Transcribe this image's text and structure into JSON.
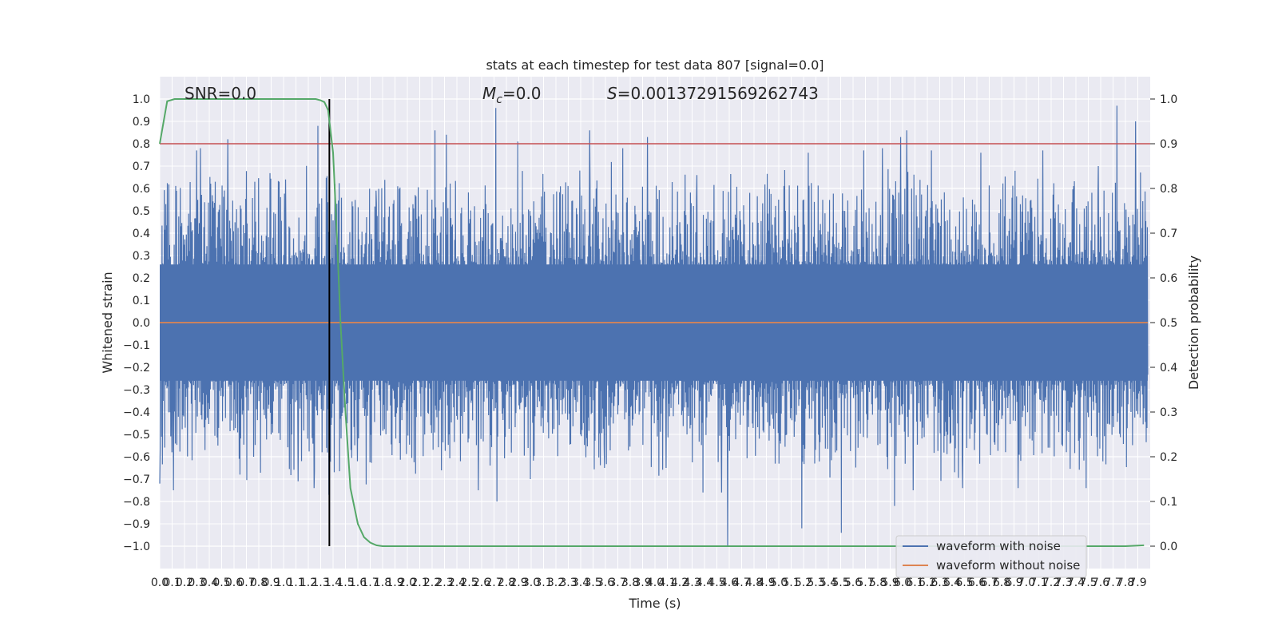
{
  "chart_data": {
    "type": "line",
    "title": "stats at each timestep for test data 807 [signal=0.0]",
    "xlabel": "Time (s)",
    "ylabel": "Whitened strain",
    "y2label": "Detection probability",
    "xlim": [
      0.0,
      8.0
    ],
    "ylim": [
      -1.1,
      1.1
    ],
    "y2lim": [
      -0.05,
      1.05
    ],
    "xticks": [
      "0.0",
      "0.1",
      "0.2",
      "0.3",
      "0.4",
      "0.5",
      "0.6",
      "0.7",
      "0.8",
      "0.9",
      "1.0",
      "1.1",
      "1.2",
      "1.3",
      "1.4",
      "1.5",
      "1.6",
      "1.7",
      "1.8",
      "1.9",
      "2.0",
      "2.1",
      "2.2",
      "2.3",
      "2.4",
      "2.5",
      "2.6",
      "2.7",
      "2.8",
      "2.9",
      "3.0",
      "3.1",
      "3.2",
      "3.3",
      "3.4",
      "3.5",
      "3.6",
      "3.7",
      "3.8",
      "3.9",
      "4.0",
      "4.1",
      "4.2",
      "4.3",
      "4.4",
      "4.5",
      "4.6",
      "4.7",
      "4.8",
      "4.9",
      "5.0",
      "5.1",
      "5.2",
      "5.3",
      "5.4",
      "5.5",
      "5.6",
      "5.7",
      "5.8",
      "5.9",
      "6.0",
      "6.1",
      "6.2",
      "6.3",
      "6.4",
      "6.5",
      "6.6",
      "6.7",
      "6.8",
      "6.9",
      "7.0",
      "7.1",
      "7.2",
      "7.3",
      "7.4",
      "7.5",
      "7.6",
      "7.7",
      "7.8",
      "7.9"
    ],
    "yticks": [
      "−1.0",
      "−0.9",
      "−0.8",
      "−0.7",
      "−0.6",
      "−0.5",
      "−0.4",
      "−0.3",
      "−0.2",
      "−0.1",
      "0.0",
      "0.1",
      "0.2",
      "0.3",
      "0.4",
      "0.5",
      "0.6",
      "0.7",
      "0.8",
      "0.9",
      "1.0"
    ],
    "y2ticks": [
      "0.0",
      "0.1",
      "0.2",
      "0.3",
      "0.4",
      "0.5",
      "0.6",
      "0.7",
      "0.8",
      "0.9",
      "1.0"
    ],
    "annotations": {
      "snr": "SNR=0.0",
      "mc_symbol": "M",
      "mc_sub": "c",
      "mc_value": "=0.0",
      "s_symbol": "S",
      "s_value": "=0.00137291569262743"
    },
    "threshold": 0.9,
    "marker_time": 1.37,
    "grid": true,
    "legend_position": "lower right",
    "series": [
      {
        "name": "waveform with noise",
        "color": "#4c72b0",
        "note_values": "dense noise trace",
        "spikes": [
          [
            0.0,
            -0.72
          ],
          [
            0.05,
            0.53
          ],
          [
            0.1,
            -0.58
          ],
          [
            0.11,
            -0.75
          ],
          [
            0.3,
            0.77
          ],
          [
            0.33,
            0.78
          ],
          [
            0.45,
            0.63
          ],
          [
            0.55,
            -0.73
          ],
          [
            0.55,
            0.82
          ],
          [
            0.65,
            -0.68
          ],
          [
            0.77,
            0.63
          ],
          [
            1.02,
            0.64
          ],
          [
            1.12,
            -0.71
          ],
          [
            1.25,
            -0.74
          ],
          [
            1.28,
            0.88
          ],
          [
            1.37,
            -0.77
          ],
          [
            1.42,
            0.62
          ],
          [
            1.6,
            -0.62
          ],
          [
            1.75,
            0.59
          ],
          [
            2.23,
            0.86
          ],
          [
            2.32,
            0.84
          ],
          [
            2.58,
            -0.75
          ],
          [
            2.72,
            0.96
          ],
          [
            2.73,
            -0.8
          ],
          [
            2.9,
            0.81
          ],
          [
            3.0,
            -0.7
          ],
          [
            3.4,
            0.68
          ],
          [
            3.48,
            0.86
          ],
          [
            3.6,
            -0.65
          ],
          [
            3.75,
            0.78
          ],
          [
            3.95,
            0.83
          ],
          [
            4.1,
            -0.65
          ],
          [
            4.35,
            0.66
          ],
          [
            4.4,
            -0.76
          ],
          [
            4.55,
            -0.76
          ],
          [
            4.6,
            -1.0
          ],
          [
            5.2,
            -0.92
          ],
          [
            5.25,
            0.76
          ],
          [
            5.52,
            -0.94
          ],
          [
            5.7,
            0.77
          ],
          [
            5.85,
            0.78
          ],
          [
            5.95,
            -0.82
          ],
          [
            6.0,
            0.83
          ],
          [
            6.05,
            0.86
          ],
          [
            6.1,
            -0.75
          ],
          [
            6.25,
            0.77
          ],
          [
            6.5,
            -0.74
          ],
          [
            6.65,
            0.76
          ],
          [
            6.95,
            -0.74
          ],
          [
            7.15,
            0.77
          ],
          [
            7.5,
            -0.74
          ],
          [
            7.6,
            0.7
          ],
          [
            7.75,
            0.97
          ],
          [
            7.9,
            0.9
          ]
        ]
      },
      {
        "name": "waveform without noise",
        "color": "#dd8452",
        "values": [
          0.0
        ]
      },
      {
        "name": "detection probability",
        "color": "#55a868",
        "x": [
          0.0,
          0.06,
          0.12,
          0.2,
          0.4,
          0.8,
          1.2,
          1.26,
          1.3,
          1.33,
          1.36,
          1.4,
          1.43,
          1.46,
          1.5,
          1.54,
          1.6,
          1.65,
          1.7,
          1.75,
          1.8,
          1.9,
          2.0,
          3.0,
          4.0,
          5.0,
          6.0,
          7.0,
          7.5,
          7.8,
          7.95
        ],
        "values": [
          0.9,
          0.995,
          1.0,
          1.0,
          1.0,
          1.0,
          1.0,
          1.0,
          0.997,
          0.993,
          0.975,
          0.88,
          0.7,
          0.5,
          0.3,
          0.13,
          0.05,
          0.02,
          0.008,
          0.002,
          0.0,
          0.0,
          0.0,
          0.0,
          0.0,
          0.0,
          0.0,
          0.0,
          0.0,
          0.0,
          0.002
        ]
      }
    ],
    "colors": {
      "plot_bg": "#eaeaf2",
      "grid": "#ffffff",
      "threshold": "#c44e52",
      "marker": "#000000"
    }
  }
}
